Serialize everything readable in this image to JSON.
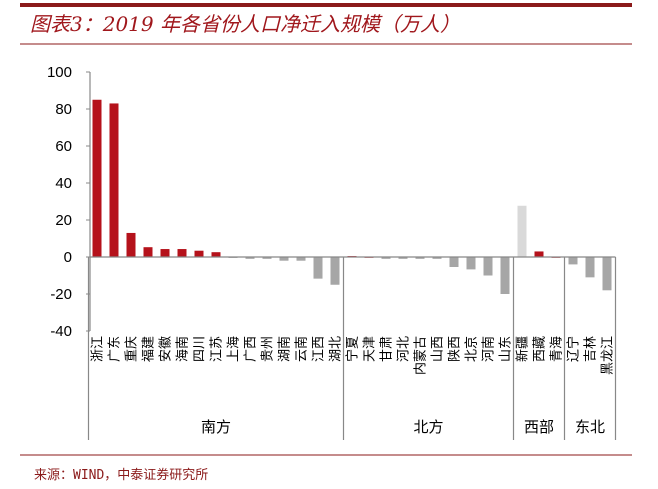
{
  "title": "图表3：2019 年各省份人口净迁入规模（万人）",
  "source": "来源：WIND，中泰证券研究所",
  "colors": {
    "positive": "#B5121B",
    "negative": "#A6A6A6",
    "highlight": "#D9D9D9",
    "title": "#A0171C",
    "rule": "#8B1A1A"
  },
  "chart_data": {
    "type": "bar",
    "title": "",
    "xlabel": "",
    "ylabel": "",
    "ylim": [
      -40,
      100
    ],
    "yticks": [
      -40,
      -20,
      0,
      20,
      40,
      60,
      80,
      100
    ],
    "grid": false,
    "legend": "none",
    "categories": [
      "浙江",
      "广东",
      "重庆",
      "福建",
      "安徽",
      "海南",
      "四川",
      "江苏",
      "上海",
      "广西",
      "贵州",
      "湖南",
      "云南",
      "江西",
      "湖北",
      "宁夏",
      "天津",
      "甘肃",
      "河北",
      "内蒙古",
      "山西",
      "陕西",
      "北京",
      "河南",
      "山东",
      "新疆",
      "西藏",
      "青海",
      "辽宁",
      "吉林",
      "黑龙江"
    ],
    "values": [
      85,
      83,
      13,
      5.3,
      4.3,
      4.3,
      3.4,
      2.6,
      -0.5,
      -1,
      -1,
      -2,
      -2,
      -11.7,
      -15,
      0.5,
      0,
      -1,
      -1,
      -1,
      -1,
      -5.4,
      -6.7,
      -10,
      -20,
      27.7,
      3,
      0,
      -4,
      -11,
      -18
    ],
    "groups": [
      {
        "label": "南方",
        "count": 15
      },
      {
        "label": "北方",
        "count": 10
      },
      {
        "label": "西部",
        "count": 3
      },
      {
        "label": "东北",
        "count": 3
      }
    ],
    "highlighted_category": "新疆"
  }
}
